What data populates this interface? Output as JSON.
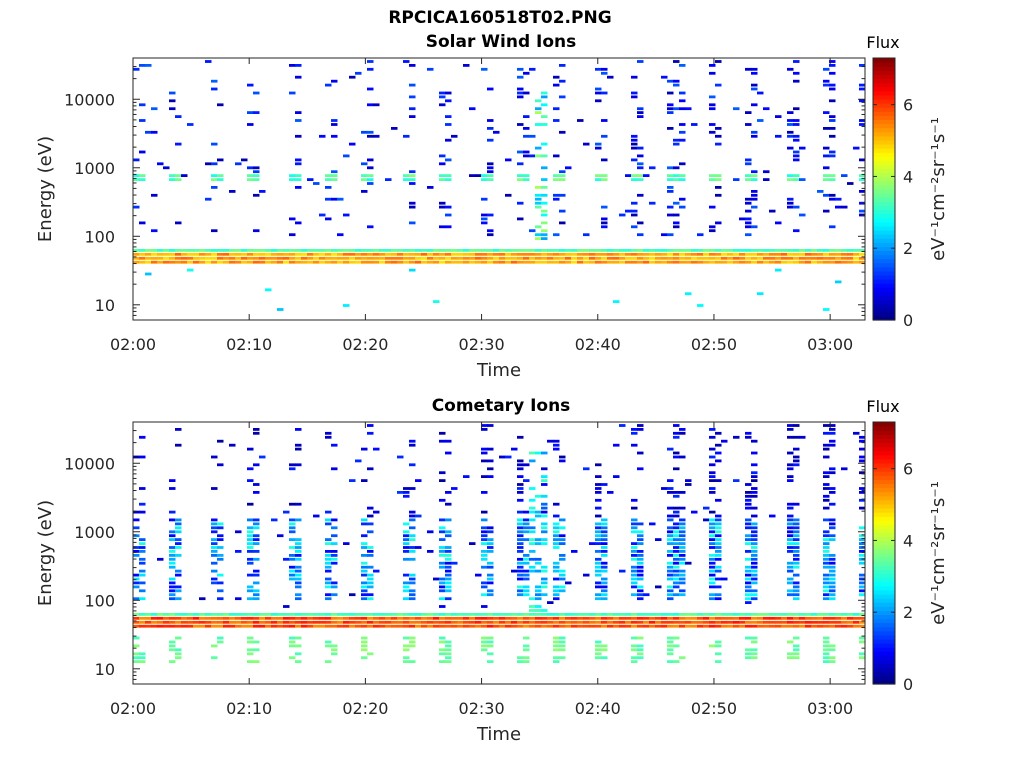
{
  "figure": {
    "title": "RPCICA160518T02.PNG"
  },
  "chart_data": [
    {
      "type": "heatmap",
      "title": "Solar Wind Ions",
      "xlabel": "Time",
      "ylabel": "Energy (eV)",
      "x_range": [
        "02:00",
        "03:03"
      ],
      "x_ticks": [
        "02:00",
        "02:10",
        "02:20",
        "02:30",
        "02:40",
        "02:50",
        "03:00"
      ],
      "y_scale": "log",
      "y_range": [
        6,
        40000
      ],
      "y_ticks": [
        "10",
        "100",
        "1000",
        "10000"
      ],
      "colorbar": {
        "label": "Flux",
        "units": "eV⁻¹cm⁻²sr⁻¹s⁻¹",
        "range": [
          0,
          7.3
        ],
        "ticks": [
          "0",
          "2",
          "4",
          "6"
        ],
        "colormap": "jet"
      },
      "features": {
        "dominant_band_eV": [
          38,
          60
        ],
        "dominant_band_flux": 5.2,
        "secondary_band_eV": [
          600,
          800
        ],
        "secondary_band_flux": 3.3,
        "burst_time": "02:35"
      }
    },
    {
      "type": "heatmap",
      "title": "Cometary Ions",
      "xlabel": "Time",
      "ylabel": "Energy (eV)",
      "x_range": [
        "02:00",
        "03:03"
      ],
      "x_ticks": [
        "02:00",
        "02:10",
        "02:20",
        "02:30",
        "02:40",
        "02:50",
        "03:00"
      ],
      "y_scale": "log",
      "y_range": [
        6,
        40000
      ],
      "y_ticks": [
        "10",
        "100",
        "1000",
        "10000"
      ],
      "colorbar": {
        "label": "Flux",
        "units": "eV⁻¹cm⁻²sr⁻¹s⁻¹",
        "range": [
          0,
          7.3
        ],
        "ticks": [
          "0",
          "2",
          "4",
          "6"
        ],
        "colormap": "jet"
      },
      "features": {
        "dominant_band_eV": [
          38,
          60
        ],
        "dominant_band_flux": 5.8,
        "periodic_spikes_eV": [
          100,
          1500
        ],
        "low_energy_band_eV": [
          12,
          30
        ],
        "burst_time": "02:35"
      }
    }
  ]
}
